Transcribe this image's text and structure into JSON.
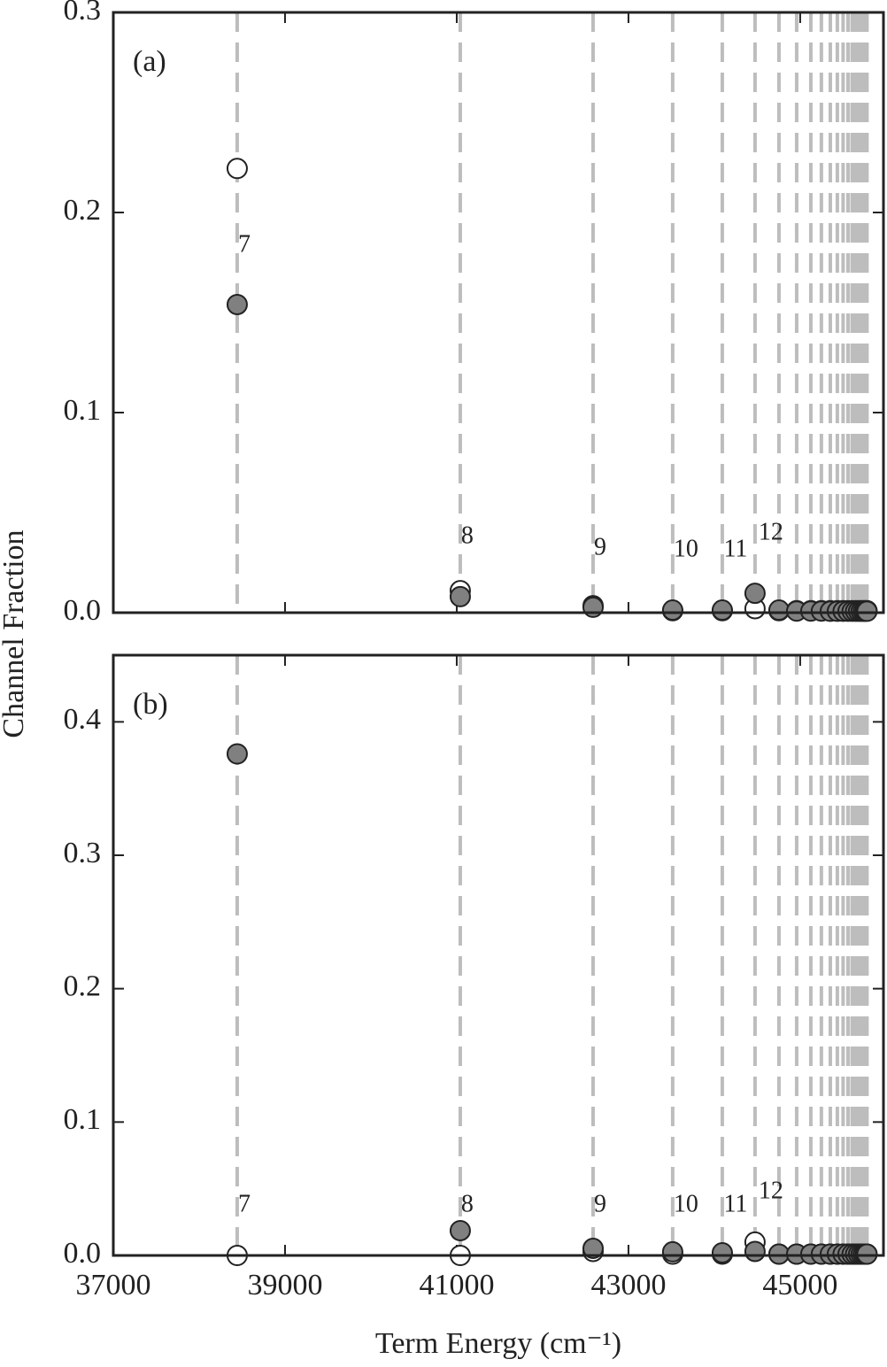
{
  "chart_data": [
    {
      "type": "scatter",
      "panel_label": "(a)",
      "ylabel": "Channel Fraction",
      "x": [
        38443,
        41041,
        42588,
        43515,
        44093,
        44474,
        44753,
        44959,
        45124,
        45247,
        45351,
        45433,
        45500,
        45557,
        45605,
        45645,
        45680,
        45710,
        45736,
        45758,
        45778
      ],
      "level_labels": [
        "7",
        "8",
        "9",
        "10",
        "11",
        "12"
      ],
      "series": [
        {
          "name": "open",
          "color": "#ffffff",
          "values": [
            0.222,
            0.011,
            0.0035,
            0.001,
            0.001,
            0.002,
            0.001,
            0.001,
            0.001,
            0.001,
            0.001,
            0.001,
            0.001,
            0.001,
            0.001,
            0.001,
            0.001,
            0.001,
            0.001,
            0.001,
            0.001
          ]
        },
        {
          "name": "filled",
          "color": "#808080",
          "values": [
            0.154,
            0.008,
            0.0027,
            0.0013,
            0.0013,
            0.0097,
            0.0013,
            0.0008,
            0.0008,
            0.0008,
            0.0007,
            0.0007,
            0.0007,
            0.0007,
            0.0007,
            0.0007,
            0.0007,
            0.0007,
            0.0007,
            0.0007,
            0.0007
          ]
        }
      ],
      "xlim": [
        37000,
        45970
      ],
      "xticks": [
        37000,
        39000,
        41000,
        43000,
        45000
      ],
      "xticklabels": false,
      "ylim": [
        0,
        0.3
      ],
      "yticks": [
        {
          "value": 0,
          "label": "0.0"
        },
        0.1,
        0.2,
        0.3
      ]
    },
    {
      "type": "scatter",
      "panel_label": "(b)",
      "xlabel": "Term Energy (cm⁻¹)",
      "x": [
        38443,
        41041,
        42588,
        43515,
        44093,
        44474,
        44753,
        44959,
        45124,
        45247,
        45351,
        45433,
        45500,
        45557,
        45605,
        45645,
        45680,
        45710,
        45736,
        45758,
        45778
      ],
      "level_labels": [
        "7",
        "8",
        "9",
        "10",
        "11",
        "12"
      ],
      "series": [
        {
          "name": "open",
          "color": "#ffffff",
          "values": [
            0,
            0,
            0.003,
            0.001,
            0.001,
            0.01,
            0.001,
            0.001,
            0.001,
            0.001,
            0.001,
            0.001,
            0.001,
            0.001,
            0.001,
            0.001,
            0.001,
            0.001,
            0.001,
            0.001,
            0.001
          ]
        },
        {
          "name": "filled",
          "color": "#808080",
          "values": [
            0.376,
            0.0186,
            0.0053,
            0.0027,
            0.002,
            0.003,
            0.001,
            0.001,
            0.001,
            0.001,
            0.001,
            0.001,
            0.001,
            0.001,
            0.001,
            0.001,
            0.001,
            0.001,
            0.001,
            0.001,
            0.001
          ]
        }
      ],
      "xlim": [
        37000,
        45970
      ],
      "xticks": [
        37000,
        39000,
        41000,
        43000,
        45000
      ],
      "xticklabels": true,
      "ylim": [
        0,
        0.45
      ],
      "yticks": [
        {
          "value": 0,
          "label": "0.0"
        },
        0.1,
        0.2,
        0.3,
        0.4
      ]
    }
  ]
}
